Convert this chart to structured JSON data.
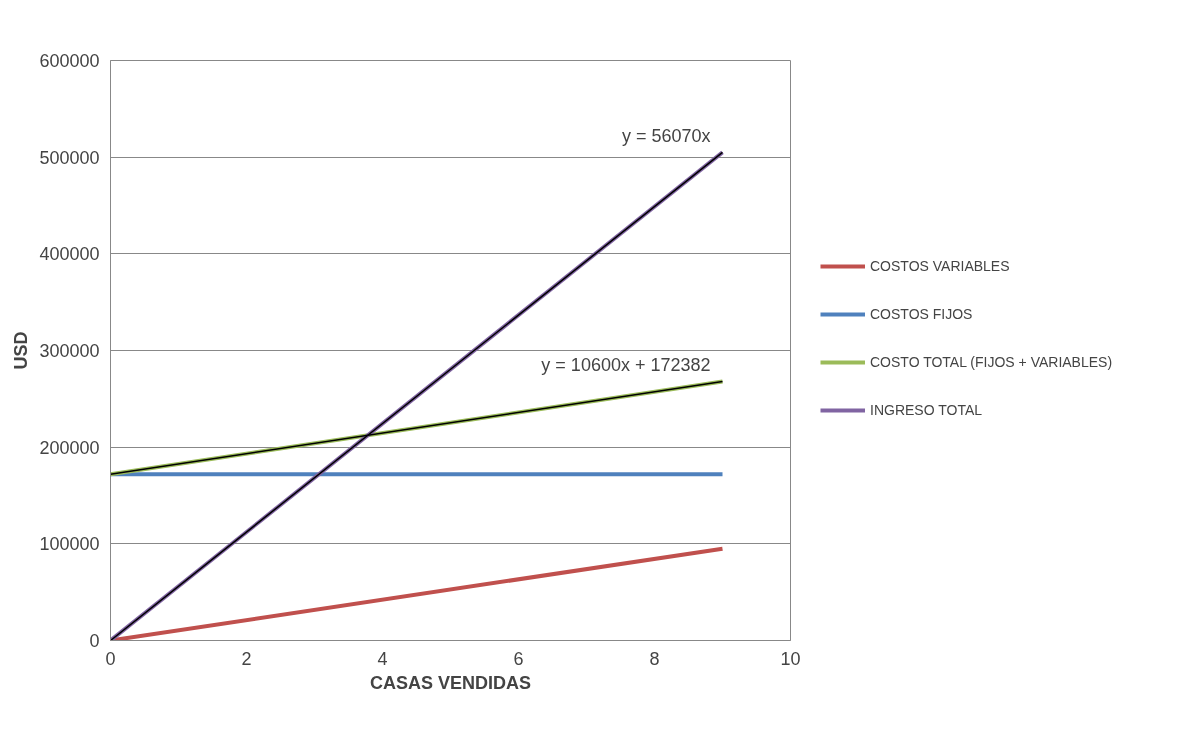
{
  "chart_data": {
    "type": "line",
    "xlabel": "CASAS VENDIDAS",
    "ylabel": "USD",
    "x": [
      0,
      9
    ],
    "series": [
      {
        "name": "COSTOS VARIABLES",
        "color": "#c0504d",
        "values": [
          0,
          95000
        ]
      },
      {
        "name": "COSTOS FIJOS",
        "color": "#4f81bd",
        "values": [
          172000,
          172000
        ]
      },
      {
        "name": "COSTO TOTAL (FIJOS + VARIABLES)",
        "color": "#9bbb59",
        "values": [
          172000,
          268000
        ]
      },
      {
        "name": "INGRESO TOTAL",
        "color": "#8064a2",
        "values": [
          0,
          505000
        ]
      },
      {
        "color": "#000000",
        "values": [
          0,
          505000
        ]
      },
      {
        "color": "#000000",
        "values": [
          172000,
          268000
        ]
      }
    ],
    "annotations": [
      "y = 56070x",
      "y = 10600x + 172382"
    ],
    "xlim": [
      0,
      10
    ],
    "xticks": [
      0,
      2,
      4,
      6,
      8,
      10
    ],
    "ylim": [
      0,
      600000
    ],
    "yticks": [
      0,
      100000,
      200000,
      300000,
      400000,
      500000,
      600000
    ],
    "grid": "y",
    "legend": "right",
    "marker": "none",
    "line_style": "solid"
  }
}
